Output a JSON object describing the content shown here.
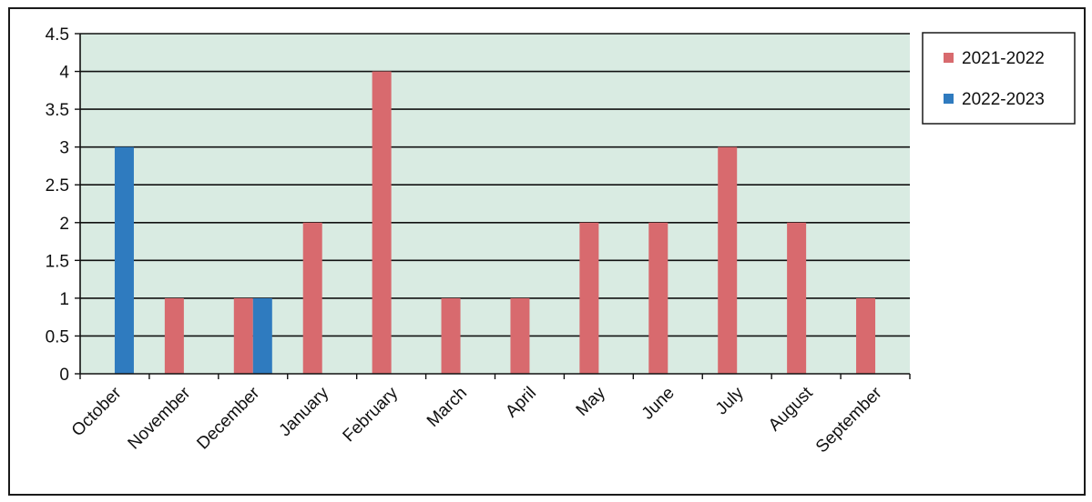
{
  "chart_data": {
    "type": "bar",
    "categories": [
      "October",
      "November",
      "December",
      "January",
      "February",
      "March",
      "April",
      "May",
      "June",
      "July",
      "August",
      "September"
    ],
    "series": [
      {
        "name": "2021-2022",
        "color": "#d86a6e",
        "values": [
          0,
          1,
          1,
          2,
          4,
          1,
          1,
          2,
          2,
          3,
          2,
          1
        ]
      },
      {
        "name": "2022-2023",
        "color": "#2f7bbf",
        "values": [
          3,
          0,
          1,
          0,
          0,
          0,
          0,
          0,
          0,
          0,
          0,
          0
        ]
      }
    ],
    "ylim": [
      0,
      4.5
    ],
    "yticks": [
      "0",
      "0.5",
      "1",
      "1.5",
      "2",
      "2.5",
      "3",
      "3.5",
      "4",
      "4.5"
    ],
    "grid": true,
    "plot_background": "#d9ebe2",
    "legend_position": "right"
  }
}
